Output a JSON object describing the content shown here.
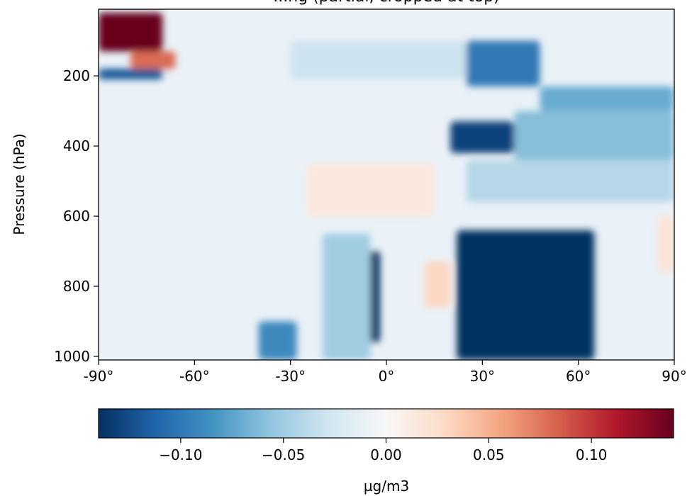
{
  "chart_data": {
    "type": "heatmap",
    "title": "...ng (partial, cropped at top)",
    "ylabel": "Pressure (hPa)",
    "xlabel": "",
    "x_ticks": [
      "-90°",
      "-60°",
      "-30°",
      "0°",
      "30°",
      "60°",
      "90°"
    ],
    "x_tick_values": [
      -90,
      -60,
      -30,
      0,
      30,
      60,
      90
    ],
    "y_ticks": [
      "200",
      "400",
      "600",
      "800",
      "1000"
    ],
    "y_tick_values": [
      200,
      400,
      600,
      800,
      1000
    ],
    "xlim": [
      -90,
      90
    ],
    "ylim": [
      1010,
      10
    ],
    "colorbar": {
      "label": "µg/m3",
      "ticks": [
        "−0.10",
        "−0.05",
        "0.00",
        "0.05",
        "0.10"
      ],
      "tick_values": [
        -0.1,
        -0.05,
        0.0,
        0.05,
        0.1
      ],
      "vmin": -0.14,
      "vmax": 0.14,
      "colormap": "RdBu_r",
      "colormap_stops": [
        "#053061",
        "#2166ac",
        "#4393c3",
        "#92c5de",
        "#d1e5f0",
        "#f7f7f7",
        "#fddbc7",
        "#f4a582",
        "#d6604d",
        "#b2182b",
        "#67001f"
      ]
    },
    "regions": [
      {
        "lat": [
          -90,
          -70
        ],
        "p": [
          20,
          130
        ],
        "value": 0.14
      },
      {
        "lat": [
          -80,
          -66
        ],
        "p": [
          130,
          180
        ],
        "value": 0.08
      },
      {
        "lat": [
          -90,
          -70
        ],
        "p": [
          180,
          210
        ],
        "value": -0.12
      },
      {
        "lat": [
          -30,
          25
        ],
        "p": [
          100,
          210
        ],
        "value": -0.03
      },
      {
        "lat": [
          25,
          48
        ],
        "p": [
          100,
          230
        ],
        "value": -0.1
      },
      {
        "lat": [
          48,
          90
        ],
        "p": [
          230,
          300
        ],
        "value": -0.07
      },
      {
        "lat": [
          20,
          40
        ],
        "p": [
          330,
          420
        ],
        "value": -0.13
      },
      {
        "lat": [
          40,
          90
        ],
        "p": [
          300,
          440
        ],
        "value": -0.06
      },
      {
        "lat": [
          25,
          90
        ],
        "p": [
          440,
          560
        ],
        "value": -0.04
      },
      {
        "lat": [
          -25,
          15
        ],
        "p": [
          450,
          600
        ],
        "value": 0.015
      },
      {
        "lat": [
          12,
          20
        ],
        "p": [
          730,
          860
        ],
        "value": 0.03
      },
      {
        "lat": [
          -12,
          -2
        ],
        "p": [
          700,
          960
        ],
        "value": -0.14
      },
      {
        "lat": [
          -20,
          -5
        ],
        "p": [
          650,
          1010
        ],
        "value": -0.05
      },
      {
        "lat": [
          -40,
          -28
        ],
        "p": [
          900,
          1010
        ],
        "value": -0.09
      },
      {
        "lat": [
          22,
          65
        ],
        "p": [
          640,
          1010
        ],
        "value": -0.14
      },
      {
        "lat": [
          85,
          90
        ],
        "p": [
          600,
          760
        ],
        "value": 0.02
      }
    ]
  }
}
